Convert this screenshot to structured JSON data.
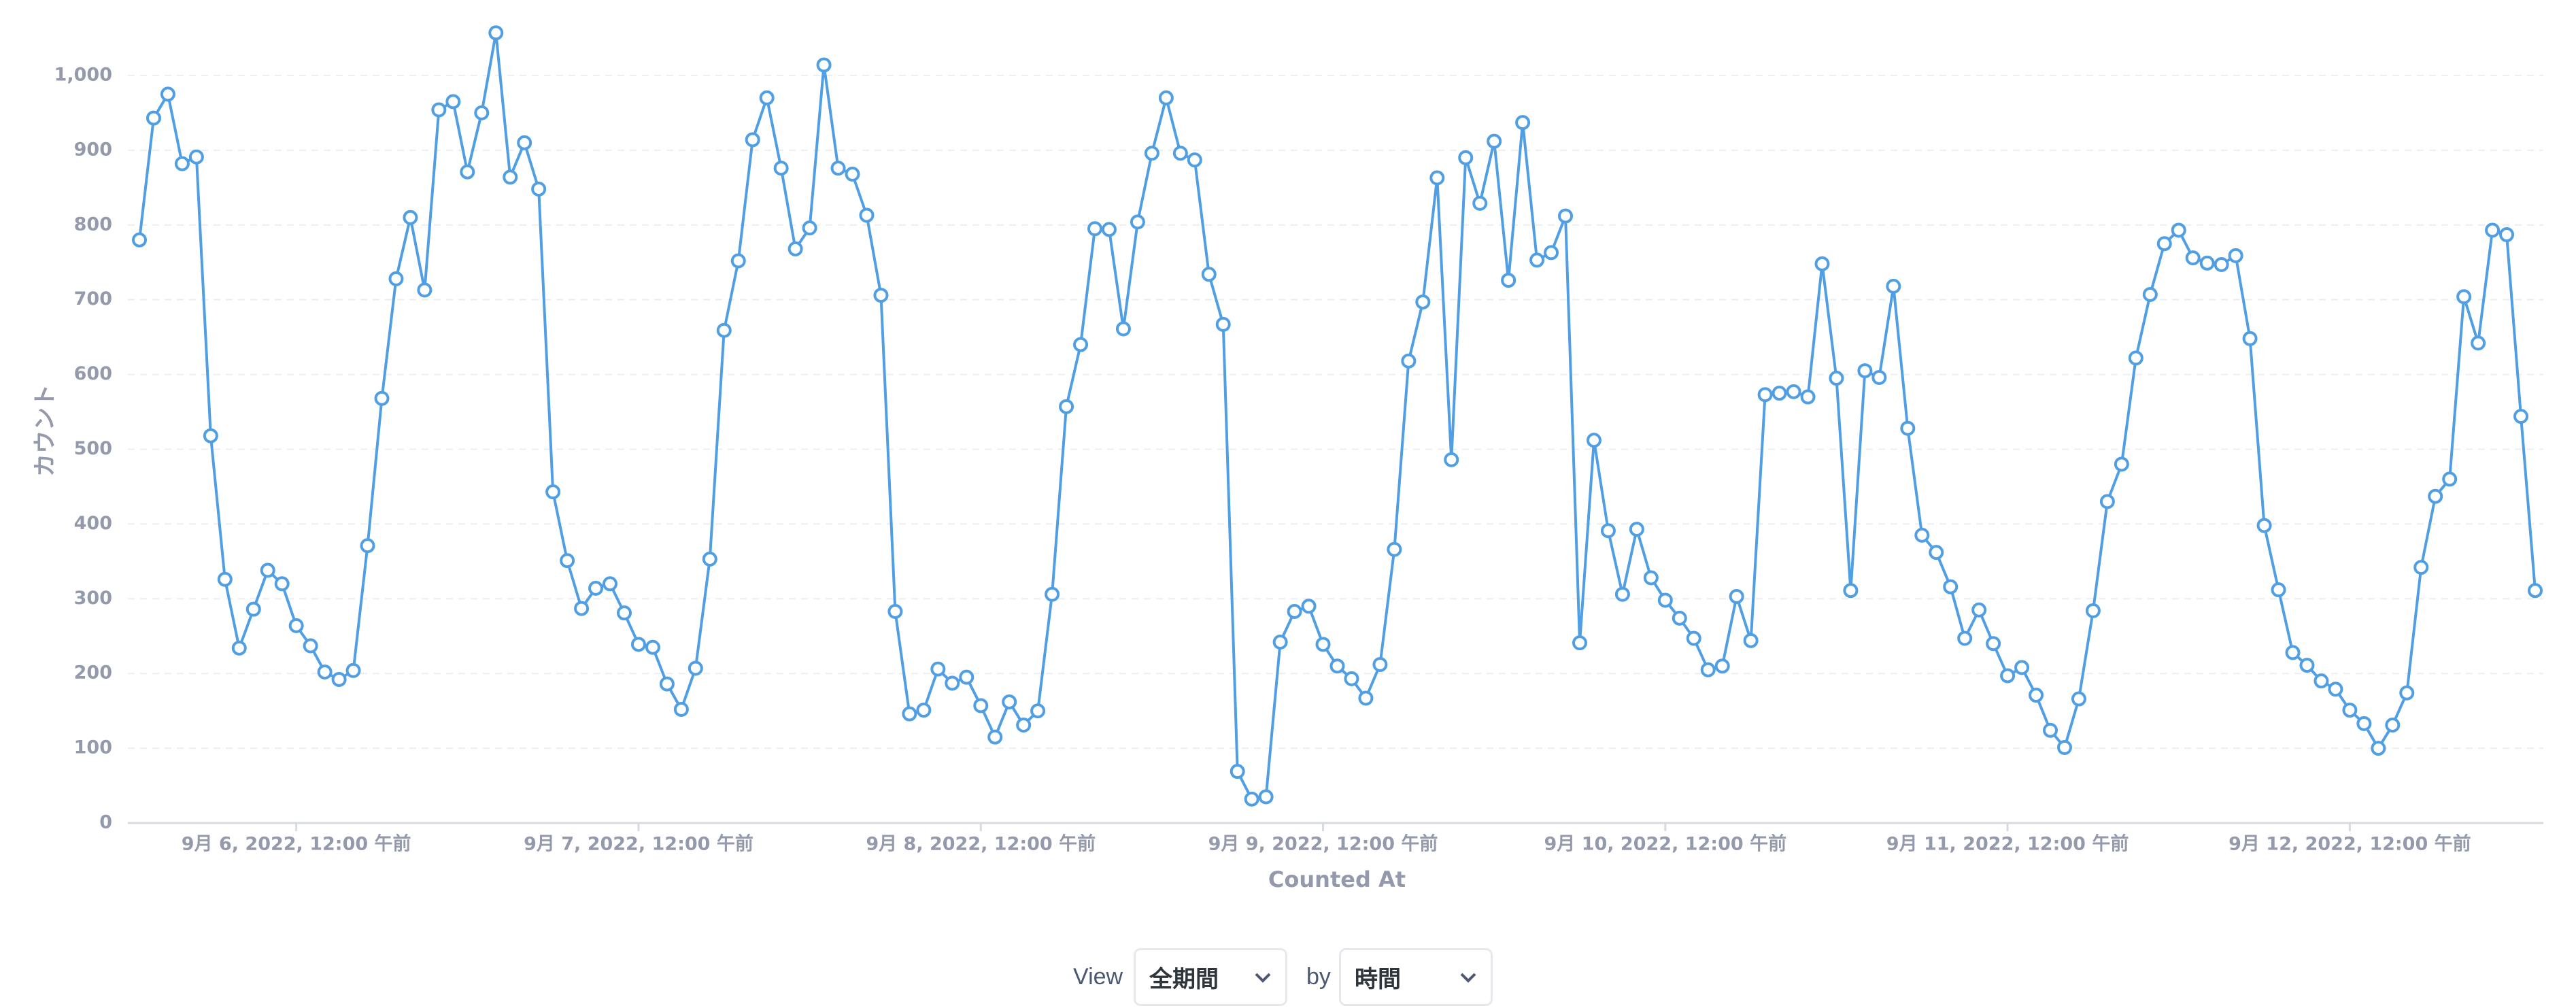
{
  "chart_data": {
    "type": "line",
    "x_label": "Counted At",
    "y_label": "カウント",
    "categories": [
      null,
      null,
      null,
      null,
      null,
      null,
      null,
      null,
      null,
      null,
      null,
      "9月 6, 2022, 12:00 午前",
      null,
      null,
      null,
      null,
      null,
      null,
      null,
      null,
      null,
      null,
      null,
      null,
      null,
      null,
      null,
      null,
      null,
      null,
      null,
      null,
      null,
      null,
      null,
      "9月 7, 2022, 12:00 午前",
      null,
      null,
      null,
      null,
      null,
      null,
      null,
      null,
      null,
      null,
      null,
      null,
      null,
      null,
      null,
      null,
      null,
      null,
      null,
      null,
      null,
      null,
      null,
      "9月 8, 2022, 12:00 午前",
      null,
      null,
      null,
      null,
      null,
      null,
      null,
      null,
      null,
      null,
      null,
      null,
      null,
      null,
      null,
      null,
      null,
      null,
      null,
      null,
      null,
      null,
      null,
      "9月 9, 2022, 12:00 午前",
      null,
      null,
      null,
      null,
      null,
      null,
      null,
      null,
      null,
      null,
      null,
      null,
      null,
      null,
      null,
      null,
      null,
      null,
      null,
      null,
      null,
      null,
      null,
      "9月 10, 2022, 12:00 午前",
      null,
      null,
      null,
      null,
      null,
      null,
      null,
      null,
      null,
      null,
      null,
      null,
      null,
      null,
      null,
      null,
      null,
      null,
      null,
      null,
      null,
      null,
      null,
      "9月 11, 2022, 12:00 午前",
      null,
      null,
      null,
      null,
      null,
      null,
      null,
      null,
      null,
      null,
      null,
      null,
      null,
      null,
      null,
      null,
      null,
      null,
      null,
      null,
      null,
      null,
      null,
      "9月 12, 2022, 12:00 午前",
      null,
      null,
      null,
      null,
      null,
      null,
      null,
      null,
      null,
      null,
      null,
      null,
      null
    ],
    "series": [
      {
        "name": "Count",
        "color": "#509ee3",
        "values": [
          780,
          943,
          975,
          882,
          891,
          518,
          326,
          234,
          286,
          338,
          320,
          264,
          237,
          202,
          192,
          204,
          371,
          568,
          728,
          810,
          713,
          954,
          965,
          871,
          950,
          1057,
          864,
          910,
          848,
          443,
          351,
          287,
          314,
          320,
          281,
          239,
          235,
          186,
          152,
          207,
          353,
          659,
          752,
          914,
          970,
          876,
          768,
          796,
          1014,
          876,
          868,
          813,
          706,
          283,
          146,
          151,
          206,
          187,
          195,
          157,
          115,
          162,
          131,
          150,
          306,
          557,
          640,
          795,
          794,
          661,
          804,
          896,
          970,
          896,
          887,
          734,
          667,
          69,
          32,
          35,
          242,
          283,
          290,
          239,
          210,
          193,
          167,
          212,
          366,
          618,
          697,
          863,
          486,
          890,
          829,
          912,
          726,
          937,
          753,
          763,
          812,
          241,
          512,
          391,
          306,
          393,
          328,
          298,
          274,
          247,
          205,
          210,
          303,
          244,
          573,
          575,
          577,
          570,
          748,
          595,
          311,
          605,
          596,
          718,
          528,
          385,
          362,
          316,
          247,
          285,
          240,
          197,
          208,
          171,
          124,
          101,
          166,
          284,
          430,
          480,
          622,
          707,
          775,
          793,
          756,
          749,
          747,
          759,
          648,
          398,
          312,
          228,
          211,
          190,
          179,
          151,
          133,
          100,
          131,
          174,
          342,
          437,
          460,
          704,
          642,
          793,
          787,
          544,
          311
        ]
      }
    ],
    "ylim": [
      0,
      1060
    ],
    "yticks": [
      0,
      100,
      200,
      300,
      400,
      500,
      600,
      700,
      800,
      900,
      {
        "value": 1000,
        "label": "1,000"
      }
    ],
    "grid": true
  },
  "controls": {
    "view_label": "View",
    "period": "全期間",
    "by_label": "by",
    "unit": "時間"
  }
}
